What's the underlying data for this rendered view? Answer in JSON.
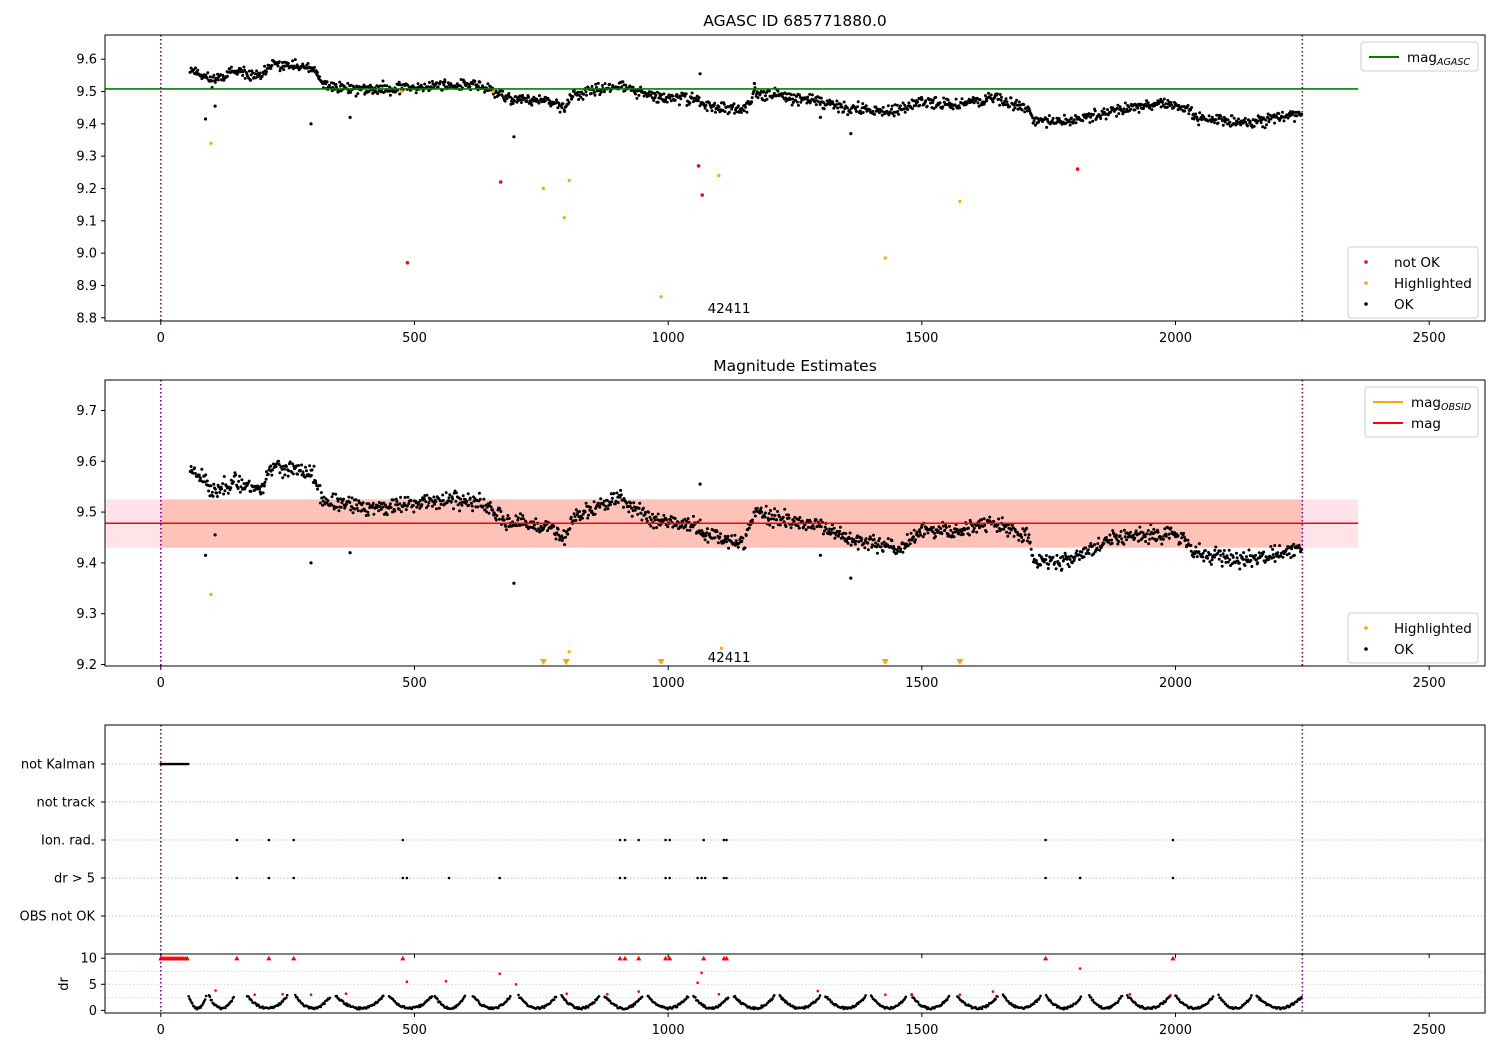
{
  "chart_data": [
    {
      "type": "scatter",
      "title": "AGASC ID 685771880.0",
      "xlim": [
        -110,
        2610
      ],
      "ylim": [
        8.79,
        9.675
      ],
      "xticks": [
        "0",
        "500",
        "1000",
        "1500",
        "2000",
        "2500"
      ],
      "yticks": [
        "8.8",
        "8.9",
        "9.0",
        "9.1",
        "9.2",
        "9.3",
        "9.4",
        "9.5",
        "9.6"
      ],
      "reference_line": {
        "name": "mag_AGASC",
        "value": 9.508,
        "x_range": [
          -110,
          2360
        ],
        "color": "#008000"
      },
      "vlines": [
        0,
        2250
      ],
      "annotation": {
        "text": "42411",
        "x": 1120,
        "y": 8.83
      },
      "legends": [
        {
          "loc": "upper right",
          "entries": [
            {
              "label": "mag",
              "sub": "AGASC",
              "kind": "line",
              "color": "#008000"
            }
          ]
        },
        {
          "loc": "lower right",
          "entries": [
            {
              "label": "not OK",
              "kind": "dot",
              "color": "#ff0000"
            },
            {
              "label": "Highlighted",
              "kind": "dot",
              "color": "#ffa500"
            },
            {
              "label": "OK",
              "kind": "dot",
              "color": "#000000"
            }
          ]
        }
      ],
      "ok_trend": [
        [
          60,
          9.57
        ],
        [
          100,
          9.535
        ],
        [
          140,
          9.56
        ],
        [
          200,
          9.545
        ],
        [
          215,
          9.585
        ],
        [
          300,
          9.57
        ],
        [
          320,
          9.52
        ],
        [
          400,
          9.505
        ],
        [
          450,
          9.51
        ],
        [
          520,
          9.515
        ],
        [
          560,
          9.52
        ],
        [
          620,
          9.52
        ],
        [
          650,
          9.505
        ],
        [
          680,
          9.48
        ],
        [
          760,
          9.47
        ],
        [
          800,
          9.45
        ],
        [
          810,
          9.49
        ],
        [
          850,
          9.5
        ],
        [
          900,
          9.52
        ],
        [
          940,
          9.5
        ],
        [
          980,
          9.48
        ],
        [
          1050,
          9.48
        ],
        [
          1070,
          9.46
        ],
        [
          1100,
          9.45
        ],
        [
          1150,
          9.44
        ],
        [
          1170,
          9.5
        ],
        [
          1250,
          9.48
        ],
        [
          1300,
          9.47
        ],
        [
          1350,
          9.45
        ],
        [
          1400,
          9.44
        ],
        [
          1460,
          9.44
        ],
        [
          1500,
          9.47
        ],
        [
          1560,
          9.46
        ],
        [
          1640,
          9.48
        ],
        [
          1710,
          9.45
        ],
        [
          1720,
          9.41
        ],
        [
          1780,
          9.405
        ],
        [
          1820,
          9.42
        ],
        [
          1870,
          9.44
        ],
        [
          1930,
          9.455
        ],
        [
          2000,
          9.46
        ],
        [
          2040,
          9.42
        ],
        [
          2100,
          9.41
        ],
        [
          2160,
          9.405
        ],
        [
          2200,
          9.42
        ],
        [
          2250,
          9.43
        ]
      ],
      "ok_outliers": [
        [
          88,
          9.415
        ],
        [
          107,
          9.455
        ],
        [
          296,
          9.4
        ],
        [
          373,
          9.42
        ],
        [
          696,
          9.36
        ],
        [
          1063,
          9.555
        ],
        [
          1360,
          9.37
        ],
        [
          1300,
          9.42
        ],
        [
          560,
          9.53
        ],
        [
          1170,
          9.525
        ]
      ],
      "not_ok_points": [
        [
          486,
          8.97
        ],
        [
          670,
          9.22
        ],
        [
          1060,
          9.27
        ],
        [
          1067,
          9.18
        ],
        [
          1807,
          9.26
        ]
      ],
      "highlighted_points": [
        [
          99,
          9.34
        ],
        [
          754,
          9.2
        ],
        [
          795,
          9.11
        ],
        [
          805,
          9.225
        ],
        [
          986,
          8.865
        ],
        [
          1100,
          9.24
        ],
        [
          1428,
          8.985
        ],
        [
          1575,
          9.16
        ],
        [
          475,
          9.5
        ],
        [
          655,
          9.5
        ]
      ]
    },
    {
      "type": "scatter",
      "title": "Magnitude Estimates",
      "xlim": [
        -110,
        2610
      ],
      "ylim": [
        9.197,
        9.76
      ],
      "xticks": [
        "0",
        "500",
        "1000",
        "1500",
        "2000",
        "2500"
      ],
      "yticks": [
        "9.2",
        "9.3",
        "9.4",
        "9.5",
        "9.6",
        "9.7"
      ],
      "reference_line": {
        "name": "mag",
        "value": 9.478,
        "x_range": [
          -110,
          2360
        ],
        "color": "#ff0000"
      },
      "band": {
        "low": 9.43,
        "high": 9.525,
        "x_range": [
          -110,
          2360
        ],
        "color": "#ff9070"
      },
      "vlines": [
        0,
        2250
      ],
      "annotation": {
        "text": "42411",
        "x": 1120,
        "y": 9.215
      },
      "legends": [
        {
          "loc": "upper right",
          "entries": [
            {
              "label": "mag",
              "sub": "OBSID",
              "kind": "line",
              "color": "#ffa500"
            },
            {
              "label": "mag",
              "kind": "line",
              "color": "#ff0000"
            }
          ]
        },
        {
          "loc": "lower right",
          "entries": [
            {
              "label": "Highlighted",
              "kind": "dot",
              "color": "#ffa500"
            },
            {
              "label": "OK",
              "kind": "dot",
              "color": "#000000"
            }
          ]
        }
      ],
      "ok_trend": [
        [
          60,
          9.585
        ],
        [
          90,
          9.565
        ],
        [
          100,
          9.535
        ],
        [
          140,
          9.56
        ],
        [
          200,
          9.545
        ],
        [
          215,
          9.59
        ],
        [
          300,
          9.575
        ],
        [
          320,
          9.52
        ],
        [
          400,
          9.51
        ],
        [
          450,
          9.51
        ],
        [
          520,
          9.52
        ],
        [
          560,
          9.525
        ],
        [
          620,
          9.52
        ],
        [
          650,
          9.505
        ],
        [
          680,
          9.48
        ],
        [
          760,
          9.47
        ],
        [
          800,
          9.45
        ],
        [
          810,
          9.49
        ],
        [
          850,
          9.505
        ],
        [
          900,
          9.53
        ],
        [
          940,
          9.5
        ],
        [
          980,
          9.485
        ],
        [
          1050,
          9.475
        ],
        [
          1070,
          9.46
        ],
        [
          1100,
          9.45
        ],
        [
          1150,
          9.44
        ],
        [
          1170,
          9.5
        ],
        [
          1250,
          9.48
        ],
        [
          1300,
          9.47
        ],
        [
          1350,
          9.45
        ],
        [
          1400,
          9.44
        ],
        [
          1460,
          9.43
        ],
        [
          1500,
          9.465
        ],
        [
          1560,
          9.46
        ],
        [
          1640,
          9.48
        ],
        [
          1710,
          9.45
        ],
        [
          1720,
          9.405
        ],
        [
          1780,
          9.405
        ],
        [
          1820,
          9.42
        ],
        [
          1870,
          9.445
        ],
        [
          1930,
          9.455
        ],
        [
          2000,
          9.46
        ],
        [
          2040,
          9.42
        ],
        [
          2100,
          9.41
        ],
        [
          2160,
          9.405
        ],
        [
          2200,
          9.42
        ],
        [
          2250,
          9.43
        ]
      ],
      "ok_outliers": [
        [
          88,
          9.415
        ],
        [
          107,
          9.455
        ],
        [
          296,
          9.4
        ],
        [
          373,
          9.42
        ],
        [
          696,
          9.36
        ],
        [
          1063,
          9.555
        ],
        [
          1360,
          9.37
        ],
        [
          1300,
          9.415
        ]
      ],
      "highlighted_points": [
        [
          99,
          9.338
        ],
        [
          805,
          9.225
        ],
        [
          1105,
          9.232
        ]
      ],
      "highlighted_clipped_x": [
        754,
        799,
        986,
        1428,
        1575
      ]
    },
    {
      "type": "scatter",
      "title": "",
      "xlim": [
        -110,
        2610
      ],
      "categories": [
        "not Kalman",
        "not track",
        "Ion. rad.",
        "dr > 5",
        "OBS not OK"
      ],
      "xticks": [
        "0",
        "500",
        "1000",
        "1500",
        "2000",
        "2500"
      ],
      "vlines": [
        0,
        2250
      ],
      "flag_points": {
        "not Kalman": [
          0,
          3,
          6,
          9,
          12,
          15,
          18,
          21,
          24,
          27,
          30,
          33,
          36,
          39,
          42,
          45,
          48,
          51,
          54
        ],
        "not track": [],
        "Ion. rad.": [
          150,
          213,
          262,
          477,
          905,
          915,
          942,
          995,
          1003,
          1070,
          1110,
          1115,
          1744,
          1995
        ],
        "dr > 5": [
          150,
          213,
          262,
          477,
          485,
          568,
          668,
          905,
          915,
          995,
          1003,
          1058,
          1066,
          1073,
          1110,
          1115,
          1744,
          1812,
          1995
        ],
        "OBS not OK": []
      }
    },
    {
      "type": "scatter",
      "title": "",
      "ylabel": "dr",
      "xlim": [
        -110,
        2610
      ],
      "ylim": [
        -0.5,
        10.8
      ],
      "xticks": [
        "0",
        "500",
        "1000",
        "1500",
        "2000",
        "2500"
      ],
      "yticks": [
        "0",
        "5",
        "10"
      ],
      "vlines": [
        0,
        2250
      ],
      "capped_value": 10,
      "red_capped_x": [
        0,
        4,
        8,
        12,
        16,
        20,
        24,
        28,
        32,
        36,
        40,
        44,
        48,
        52,
        150,
        213,
        262,
        477,
        905,
        915,
        942,
        995,
        1003,
        1070,
        1110,
        1115,
        1744,
        1995
      ],
      "red_points": [
        [
          108,
          3.8
        ],
        [
          185,
          3.0
        ],
        [
          240,
          3.1
        ],
        [
          296,
          3.0
        ],
        [
          365,
          3.2
        ],
        [
          485,
          5.5
        ],
        [
          562,
          5.6
        ],
        [
          668,
          7.0
        ],
        [
          700,
          5.0
        ],
        [
          800,
          3.2
        ],
        [
          880,
          3.1
        ],
        [
          942,
          3.6
        ],
        [
          1058,
          5.3
        ],
        [
          1066,
          7.2
        ],
        [
          1100,
          3.1
        ],
        [
          1295,
          3.7
        ],
        [
          1428,
          3.0
        ],
        [
          1480,
          3.1
        ],
        [
          1575,
          3.0
        ],
        [
          1640,
          3.6
        ],
        [
          1812,
          8.0
        ],
        [
          1910,
          3.1
        ],
        [
          1990,
          2.9
        ]
      ],
      "dr_segments": [
        [
          55,
          90
        ],
        [
          95,
          145
        ],
        [
          170,
          250
        ],
        [
          265,
          335
        ],
        [
          345,
          440
        ],
        [
          450,
          535
        ],
        [
          540,
          600
        ],
        [
          615,
          690
        ],
        [
          705,
          780
        ],
        [
          790,
          865
        ],
        [
          875,
          950
        ],
        [
          960,
          1040
        ],
        [
          1050,
          1120
        ],
        [
          1130,
          1210
        ],
        [
          1220,
          1300
        ],
        [
          1310,
          1390
        ],
        [
          1400,
          1470
        ],
        [
          1480,
          1555
        ],
        [
          1570,
          1650
        ],
        [
          1660,
          1735
        ],
        [
          1745,
          1815
        ],
        [
          1830,
          1895
        ],
        [
          1905,
          1990
        ],
        [
          2000,
          2075
        ],
        [
          2085,
          2150
        ],
        [
          2160,
          2250
        ]
      ]
    }
  ]
}
